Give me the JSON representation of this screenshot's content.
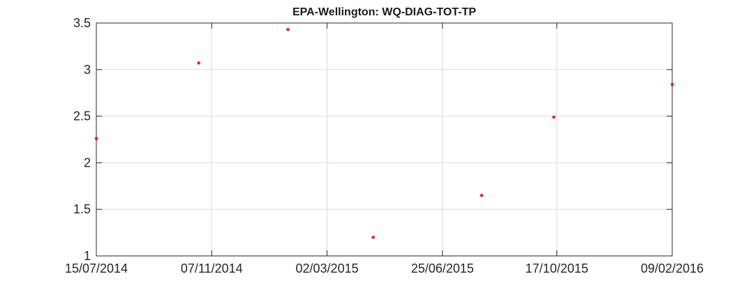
{
  "chart_data": {
    "type": "scatter",
    "title": "EPA-Wellington: WQ-DIAG-TOT-TP",
    "xlabel": "",
    "ylabel": "",
    "x_axis_type": "date",
    "xlim": [
      "2014-07-15",
      "2016-02-09"
    ],
    "ylim": [
      1,
      3.5
    ],
    "x_ticks": [
      "2014-07-15",
      "2014-11-07",
      "2015-03-02",
      "2015-06-25",
      "2015-10-17",
      "2016-02-09"
    ],
    "x_tick_labels": [
      "15/07/2014",
      "07/11/2014",
      "02/03/2015",
      "25/06/2015",
      "17/10/2015",
      "09/02/2016"
    ],
    "y_ticks": [
      1,
      1.5,
      2,
      2.5,
      3,
      3.5
    ],
    "y_tick_labels": [
      "1",
      "1.5",
      "2",
      "2.5",
      "3",
      "3.5"
    ],
    "grid": true,
    "marker_color": "#ff0000",
    "series": [
      {
        "x": [
          "2014-07-15",
          "2014-10-25",
          "2015-01-22",
          "2015-04-17",
          "2015-08-03",
          "2015-10-14",
          "2016-02-09"
        ],
        "y": [
          2.26,
          3.07,
          3.43,
          1.2,
          1.65,
          2.49,
          2.84
        ]
      }
    ]
  }
}
